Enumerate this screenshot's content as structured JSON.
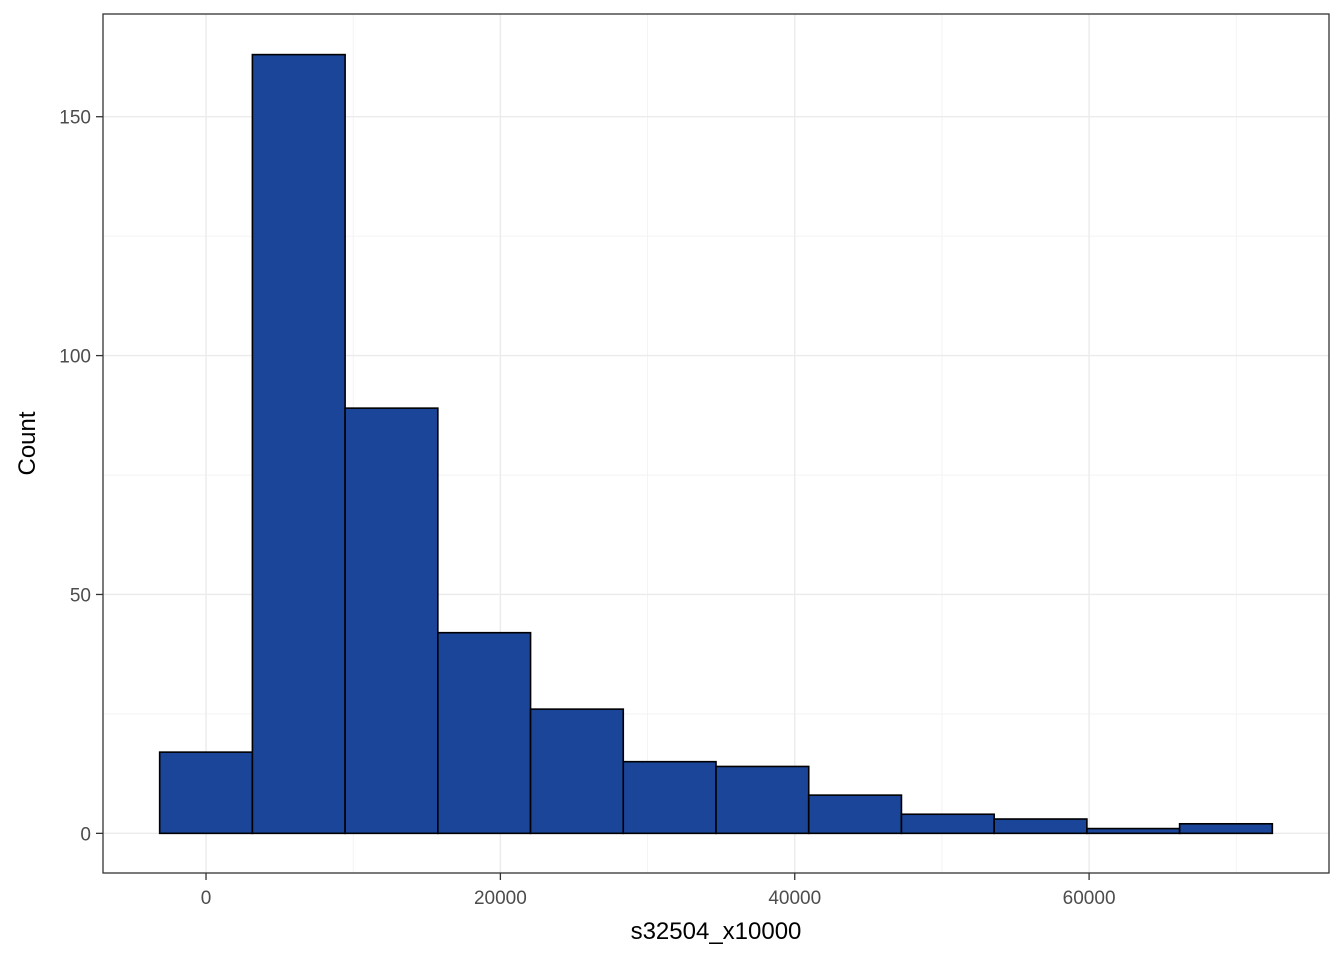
{
  "chart_data": {
    "type": "bar",
    "subtype": "histogram",
    "title": "",
    "xlabel": "s32504_x10000",
    "ylabel": "Count",
    "bin_edges": [
      -3150,
      3150,
      9450,
      15750,
      22050,
      28350,
      34650,
      40950,
      47250,
      53550,
      59850,
      66150,
      72450
    ],
    "values": [
      17,
      163,
      89,
      42,
      26,
      15,
      14,
      8,
      4,
      3,
      1,
      2
    ],
    "xlim": [
      -7000,
      76300
    ],
    "ylim": [
      -8.3,
      171.5
    ],
    "x_ticks": [
      0,
      20000,
      40000,
      60000
    ],
    "x_tick_labels": [
      "0",
      "20000",
      "40000",
      "60000"
    ],
    "x_minor_ticks": [
      10000,
      30000,
      50000,
      70000
    ],
    "y_ticks": [
      0,
      50,
      100,
      150
    ],
    "y_tick_labels": [
      "0",
      "50",
      "100",
      "150"
    ],
    "y_minor_ticks": [
      25,
      75,
      125
    ],
    "grid": true,
    "legend": "none",
    "colors": {
      "bar_fill": "#1a4599",
      "bar_outline": "#000000",
      "panel_border": "#333333",
      "grid_major": "#ebebeb",
      "grid_minor": "#f2f2f2"
    }
  }
}
